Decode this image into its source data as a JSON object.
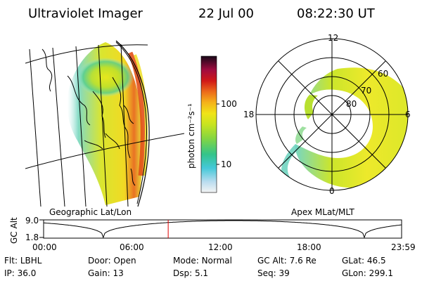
{
  "header": {
    "title": "Ultraviolet Imager",
    "date": "22 Jul 00",
    "time": "08:22:30 UT"
  },
  "colorbar": {
    "label": "photon cm⁻²s⁻¹",
    "ticks": [
      "100",
      "10"
    ]
  },
  "polar_plot": {
    "caption": "Apex MLat/MLT",
    "mlt_labels": {
      "top": "12",
      "left": "18",
      "right": "6",
      "bottom": "0"
    },
    "lat_labels": [
      "60",
      "70",
      "80"
    ]
  },
  "map_plot": {
    "caption": "Geographic Lat/Lon"
  },
  "altitude_plot": {
    "ylabel": "GC Alt",
    "yticks": [
      "9.0",
      "1.8"
    ],
    "xticks": [
      "00:00",
      "06:00",
      "12:00",
      "18:00",
      "23:59"
    ],
    "current_time_fraction": 0.348
  },
  "status": {
    "row1": [
      {
        "label": "Flt:",
        "value": "LBHL"
      },
      {
        "label": "Door:",
        "value": "Open"
      },
      {
        "label": "Mode:",
        "value": "Normal"
      },
      {
        "label": "GC Alt:",
        "value": "7.6 Re"
      },
      {
        "label": "GLat:",
        "value": "46.5"
      }
    ],
    "row2": [
      {
        "label": "IP:",
        "value": "36.0"
      },
      {
        "label": "Gain:",
        "value": "13"
      },
      {
        "label": "Dsp:",
        "value": "5.1"
      },
      {
        "label": "Seq:",
        "value": "39"
      },
      {
        "label": "GLon:",
        "value": "299.1"
      }
    ]
  },
  "colors": {
    "aurora_low": "#36c9b0",
    "aurora_mid": "#c8e61e",
    "aurora_high": "#e8e81a",
    "aurora_peak": "#e04010",
    "marker": "#e00000"
  }
}
